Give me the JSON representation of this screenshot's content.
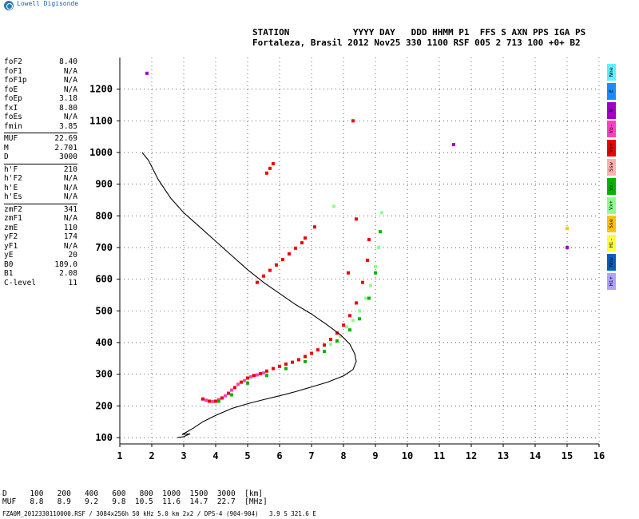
{
  "brand": {
    "text": "Lowell Digisonde"
  },
  "header": {
    "line1": "STATION            YYYY DAY   DDD HHMM P1  FFS S AXN PPS IGA PS",
    "line2": "Fortaleza, Brasil 2012 Nov25 330 1100 RSF 005 2 713 100 +0+ B2"
  },
  "params": {
    "group1": [
      {
        "k": "foF2",
        "v": "8.40"
      },
      {
        "k": "foF1",
        "v": "N/A"
      },
      {
        "k": "foF1p",
        "v": "N/A"
      },
      {
        "k": "foE",
        "v": "N/A"
      },
      {
        "k": "foEp",
        "v": "3.18"
      },
      {
        "k": "fxI",
        "v": "8.80"
      },
      {
        "k": "foEs",
        "v": "N/A"
      },
      {
        "k": "fmin",
        "v": "3.85"
      }
    ],
    "group2": [
      {
        "k": "MUF",
        "v": "22.69"
      },
      {
        "k": "M",
        "v": "2.701"
      },
      {
        "k": "D",
        "v": "3000"
      }
    ],
    "group3": [
      {
        "k": "h'F",
        "v": "210"
      },
      {
        "k": "h'F2",
        "v": "N/A"
      },
      {
        "k": "h'E",
        "v": "N/A"
      },
      {
        "k": "h'Es",
        "v": "N/A"
      }
    ],
    "group4": [
      {
        "k": "zmF2",
        "v": "341"
      },
      {
        "k": "zmF1",
        "v": "N/A"
      },
      {
        "k": "zmE",
        "v": "110"
      },
      {
        "k": "yF2",
        "v": "174"
      },
      {
        "k": "yF1",
        "v": "N/A"
      },
      {
        "k": "yE",
        "v": "20"
      },
      {
        "k": "B0",
        "v": "189.0"
      },
      {
        "k": "B1",
        "v": "2.08"
      },
      {
        "k": "C-level",
        "v": "11"
      }
    ]
  },
  "legend": [
    {
      "label": "Nne",
      "color": "#5ff0ff"
    },
    {
      "label": "E",
      "color": "#1a8cff"
    },
    {
      "label": "W",
      "color": "#a000c8"
    },
    {
      "label": "Vo-",
      "color": "#ff40c0"
    },
    {
      "label": "Vo+",
      "color": "#ee0000"
    },
    {
      "label": "Ssw",
      "color": "#ffb0b0"
    },
    {
      "label": "Vx-",
      "color": "#00b400"
    },
    {
      "label": "Vx+",
      "color": "#90ff90"
    },
    {
      "label": "Sse",
      "color": "#ffc000"
    },
    {
      "label": "Hi-",
      "color": "#ffff40"
    },
    {
      "label": "Nnw",
      "color": "#0060c0"
    },
    {
      "label": "Hi+",
      "color": "#b0a0ff"
    }
  ],
  "bottom": {
    "row1": "D     100   200   400   600   800  1000  1500  3000  [km]",
    "row2": "MUF   8.8   8.9   9.2   9.8  10.5  11.6  14.7  22.7  [MHz]"
  },
  "footer": "FZA0M_2012330110000.RSF / 3084x256h 50 kHz 5.0 km 2x2 / DPS-4 (904-904)   3.9 S 321.6 E",
  "chart_data": {
    "type": "scatter",
    "xlim": [
      1,
      16
    ],
    "ylim": [
      80,
      1300
    ],
    "xticks": [
      1,
      2,
      3,
      4,
      5,
      6,
      7,
      8,
      9,
      10,
      11,
      12,
      13,
      14,
      15,
      16
    ],
    "yticks": [
      100,
      200,
      300,
      400,
      500,
      600,
      700,
      800,
      900,
      1000,
      1100,
      1200
    ],
    "grid": true,
    "series": [
      {
        "legend": "Vo+",
        "color": "#ee0000",
        "style": "dots",
        "points": [
          [
            3.6,
            222
          ],
          [
            3.8,
            215
          ],
          [
            4.0,
            215
          ],
          [
            4.2,
            225
          ],
          [
            4.4,
            240
          ],
          [
            4.6,
            258
          ],
          [
            4.8,
            275
          ],
          [
            5.0,
            288
          ],
          [
            5.2,
            296
          ],
          [
            5.4,
            302
          ],
          [
            5.6,
            310
          ],
          [
            5.8,
            318
          ],
          [
            6.0,
            325
          ],
          [
            6.2,
            332
          ],
          [
            6.4,
            338
          ],
          [
            6.6,
            346
          ],
          [
            6.8,
            356
          ],
          [
            7.0,
            366
          ],
          [
            7.2,
            377
          ],
          [
            7.4,
            392
          ],
          [
            7.6,
            410
          ],
          [
            7.8,
            430
          ],
          [
            8.0,
            455
          ],
          [
            8.2,
            485
          ],
          [
            8.4,
            525
          ],
          [
            8.6,
            590
          ],
          [
            8.75,
            660
          ],
          [
            8.8,
            725
          ]
        ]
      },
      {
        "legend": "Vo-",
        "color": "#ff40c0",
        "style": "dots",
        "points": [
          [
            3.7,
            218
          ],
          [
            3.9,
            214
          ],
          [
            4.1,
            220
          ],
          [
            4.3,
            232
          ],
          [
            4.5,
            250
          ],
          [
            4.7,
            268
          ],
          [
            4.9,
            280
          ],
          [
            5.1,
            292
          ],
          [
            5.3,
            298
          ],
          [
            5.5,
            304
          ]
        ]
      },
      {
        "legend": "Vx-",
        "color": "#00b400",
        "style": "dots",
        "points": [
          [
            4.1,
            215
          ],
          [
            4.5,
            235
          ],
          [
            5.0,
            272
          ],
          [
            5.6,
            296
          ],
          [
            6.2,
            318
          ],
          [
            6.8,
            340
          ],
          [
            7.4,
            372
          ],
          [
            7.8,
            405
          ],
          [
            8.2,
            440
          ],
          [
            8.5,
            475
          ],
          [
            8.8,
            540
          ],
          [
            9.0,
            620
          ],
          [
            9.1,
            700
          ],
          [
            9.15,
            750
          ]
        ]
      },
      {
        "legend": "Vx+",
        "color": "#90ff90",
        "style": "dots",
        "points": [
          [
            7.6,
            395
          ],
          [
            7.9,
            420
          ],
          [
            8.1,
            450
          ],
          [
            8.3,
            470
          ],
          [
            8.5,
            500
          ],
          [
            8.7,
            540
          ],
          [
            8.85,
            580
          ],
          [
            9.0,
            640
          ],
          [
            9.1,
            700
          ],
          [
            9.2,
            810
          ],
          [
            7.7,
            830
          ]
        ]
      },
      {
        "legend": "Vo+",
        "color": "#ee0000",
        "style": "dots",
        "points": [
          [
            5.3,
            590
          ],
          [
            5.5,
            610
          ],
          [
            5.7,
            628
          ],
          [
            5.9,
            645
          ],
          [
            6.1,
            662
          ],
          [
            6.3,
            680
          ],
          [
            6.5,
            698
          ],
          [
            6.7,
            715
          ],
          [
            6.8,
            730
          ],
          [
            5.6,
            935
          ],
          [
            5.7,
            950
          ],
          [
            5.8,
            965
          ],
          [
            8.3,
            1100
          ],
          [
            7.1,
            765
          ],
          [
            8.15,
            620
          ],
          [
            8.4,
            790
          ]
        ]
      },
      {
        "legend": "W",
        "color": "#a000c8",
        "style": "dots",
        "points": [
          [
            1.85,
            1250
          ],
          [
            11.45,
            1025
          ],
          [
            15.0,
            700
          ]
        ]
      },
      {
        "legend": "Sse",
        "color": "#ffc000",
        "style": "dots",
        "points": [
          [
            15.0,
            760
          ]
        ]
      },
      {
        "legend": "profile",
        "color": "#000000",
        "style": "line",
        "points": [
          [
            1.7,
            1000
          ],
          [
            1.9,
            975
          ],
          [
            2.2,
            915
          ],
          [
            2.6,
            855
          ],
          [
            3.0,
            810
          ],
          [
            3.5,
            765
          ],
          [
            4.0,
            720
          ],
          [
            4.5,
            675
          ],
          [
            5.0,
            630
          ],
          [
            5.5,
            590
          ],
          [
            6.0,
            555
          ],
          [
            6.5,
            520
          ],
          [
            7.0,
            490
          ],
          [
            7.5,
            455
          ],
          [
            7.9,
            425
          ],
          [
            8.2,
            395
          ],
          [
            8.35,
            365
          ],
          [
            8.4,
            341
          ],
          [
            8.3,
            315
          ],
          [
            8.0,
            295
          ],
          [
            7.5,
            275
          ],
          [
            7.0,
            260
          ],
          [
            6.5,
            245
          ],
          [
            6.0,
            232
          ],
          [
            5.5,
            220
          ],
          [
            5.0,
            207
          ],
          [
            4.5,
            192
          ],
          [
            4.0,
            170
          ],
          [
            3.6,
            150
          ],
          [
            3.3,
            130
          ],
          [
            3.1,
            118
          ],
          [
            2.95,
            110
          ],
          [
            3.2,
            112
          ],
          [
            3.0,
            103
          ],
          [
            2.8,
            100
          ]
        ]
      }
    ]
  }
}
